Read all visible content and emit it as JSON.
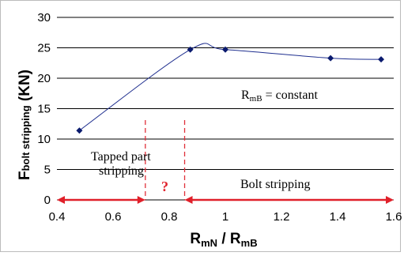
{
  "chart_data": {
    "type": "line",
    "xlim": [
      0.4,
      1.6
    ],
    "ylim": [
      0,
      30
    ],
    "x_ticks": [
      "0.4",
      "0.6",
      "0.8",
      "1",
      "1.2",
      "1.4",
      "1.6"
    ],
    "y_ticks": [
      "0",
      "5",
      "10",
      "15",
      "20",
      "25",
      "30"
    ],
    "x_tick_values": [
      0.4,
      0.6,
      0.8,
      1.0,
      1.2,
      1.4,
      1.6
    ],
    "y_tick_values": [
      0,
      5,
      10,
      15,
      20,
      25,
      30
    ],
    "xlabel": {
      "main": "R",
      "sub1": "mN",
      "mid": " / R",
      "sub2": "mB"
    },
    "ylabel": {
      "main": "F",
      "sub": "bolt stripping",
      "tail": " (KN)"
    },
    "grid": "horizontal",
    "series": [
      {
        "points": [
          {
            "x": 0.48,
            "y": 11.4
          },
          {
            "x": 0.875,
            "y": 24.7
          },
          {
            "x": 1.0,
            "y": 24.7
          },
          {
            "x": 1.375,
            "y": 23.3
          },
          {
            "x": 1.555,
            "y": 23.1
          }
        ],
        "color": "#1f2f8f"
      }
    ],
    "vlines": [
      0.715,
      0.855
    ],
    "annotations": {
      "rmb": {
        "main": "R",
        "sub": "mB",
        "tail": " = constant"
      },
      "tapped_line1": "Tapped part",
      "tapped_line2": "stripping",
      "question": "?",
      "bolt": "Bolt stripping"
    },
    "colors": {
      "series": "#1f2f8f",
      "marker": "#0a1a6e",
      "dashed": "#e0303a",
      "arrow": "#e0202a",
      "grid": "#000000"
    }
  }
}
